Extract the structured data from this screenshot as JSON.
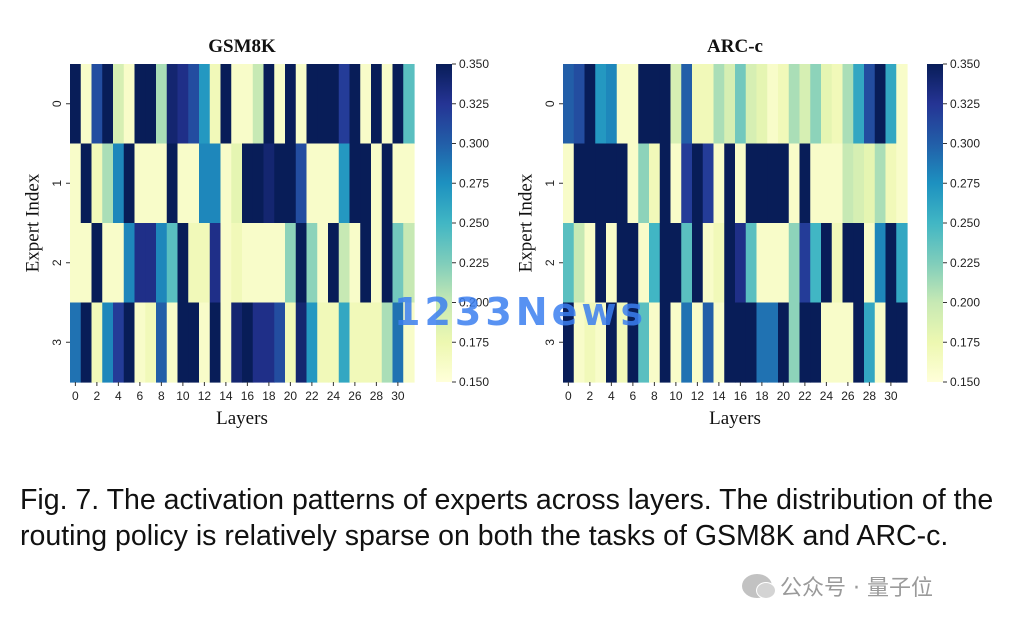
{
  "chart_data": [
    {
      "type": "heatmap",
      "title": "GSM8K",
      "xlabel": "Layers",
      "ylabel": "Expert Index",
      "x_ticks": [
        "0",
        "2",
        "4",
        "6",
        "8",
        "10",
        "12",
        "14",
        "16",
        "18",
        "20",
        "22",
        "24",
        "26",
        "28",
        "30"
      ],
      "y_ticks": [
        "0",
        "1",
        "2",
        "3"
      ],
      "colorbar": {
        "min": 0.15,
        "max": 0.35,
        "ticks": [
          "0.350",
          "0.325",
          "0.300",
          "0.275",
          "0.250",
          "0.225",
          "0.200",
          "0.175",
          "0.150"
        ]
      },
      "values": [
        [
          0.35,
          0.16,
          0.31,
          0.35,
          0.19,
          0.16,
          0.35,
          0.35,
          0.21,
          0.34,
          0.33,
          0.31,
          0.27,
          0.17,
          0.35,
          0.16,
          0.16,
          0.2,
          0.35,
          0.16,
          0.35,
          0.16,
          0.35,
          0.35,
          0.35,
          0.32,
          0.35,
          0.16,
          0.35,
          0.16,
          0.35,
          0.24
        ],
        [
          0.16,
          0.35,
          0.17,
          0.21,
          0.28,
          0.35,
          0.16,
          0.16,
          0.16,
          0.35,
          0.16,
          0.16,
          0.28,
          0.28,
          0.16,
          0.18,
          0.35,
          0.35,
          0.34,
          0.35,
          0.35,
          0.31,
          0.16,
          0.16,
          0.16,
          0.27,
          0.35,
          0.35,
          0.16,
          0.35,
          0.16,
          0.16
        ],
        [
          0.16,
          0.16,
          0.35,
          0.16,
          0.16,
          0.28,
          0.33,
          0.33,
          0.28,
          0.24,
          0.35,
          0.17,
          0.17,
          0.33,
          0.16,
          0.17,
          0.16,
          0.16,
          0.16,
          0.16,
          0.22,
          0.35,
          0.22,
          0.16,
          0.35,
          0.2,
          0.16,
          0.35,
          0.16,
          0.35,
          0.23,
          0.2
        ],
        [
          0.29,
          0.35,
          0.17,
          0.28,
          0.32,
          0.35,
          0.16,
          0.17,
          0.3,
          0.16,
          0.35,
          0.35,
          0.16,
          0.35,
          0.16,
          0.34,
          0.35,
          0.33,
          0.33,
          0.31,
          0.17,
          0.34,
          0.27,
          0.17,
          0.17,
          0.26,
          0.17,
          0.17,
          0.17,
          0.21,
          0.29,
          0.16
        ]
      ]
    },
    {
      "type": "heatmap",
      "title": "ARC-c",
      "xlabel": "Layers",
      "ylabel": "Expert Index",
      "x_ticks": [
        "0",
        "2",
        "4",
        "6",
        "8",
        "10",
        "12",
        "14",
        "16",
        "18",
        "20",
        "22",
        "24",
        "26",
        "28",
        "30"
      ],
      "y_ticks": [
        "0",
        "1",
        "2",
        "3"
      ],
      "colorbar": {
        "min": 0.15,
        "max": 0.35,
        "ticks": [
          "0.350",
          "0.325",
          "0.300",
          "0.275",
          "0.250",
          "0.225",
          "0.200",
          "0.175",
          "0.150"
        ]
      },
      "values": [
        [
          0.3,
          0.31,
          0.35,
          0.27,
          0.28,
          0.16,
          0.16,
          0.35,
          0.35,
          0.35,
          0.19,
          0.3,
          0.17,
          0.17,
          0.21,
          0.19,
          0.23,
          0.19,
          0.18,
          0.16,
          0.17,
          0.21,
          0.19,
          0.22,
          0.18,
          0.17,
          0.21,
          0.26,
          0.31,
          0.35,
          0.26,
          0.16
        ],
        [
          0.16,
          0.35,
          0.35,
          0.35,
          0.35,
          0.35,
          0.16,
          0.22,
          0.17,
          0.35,
          0.16,
          0.32,
          0.35,
          0.32,
          0.16,
          0.35,
          0.16,
          0.35,
          0.35,
          0.35,
          0.35,
          0.16,
          0.35,
          0.16,
          0.16,
          0.16,
          0.2,
          0.19,
          0.18,
          0.21,
          0.17,
          0.16
        ],
        [
          0.24,
          0.2,
          0.16,
          0.35,
          0.16,
          0.35,
          0.35,
          0.16,
          0.25,
          0.35,
          0.35,
          0.24,
          0.35,
          0.16,
          0.17,
          0.35,
          0.33,
          0.24,
          0.16,
          0.16,
          0.16,
          0.22,
          0.32,
          0.25,
          0.35,
          0.17,
          0.35,
          0.35,
          0.16,
          0.28,
          0.35,
          0.26
        ],
        [
          0.35,
          0.16,
          0.17,
          0.16,
          0.35,
          0.17,
          0.35,
          0.24,
          0.16,
          0.35,
          0.16,
          0.29,
          0.16,
          0.3,
          0.16,
          0.35,
          0.35,
          0.35,
          0.29,
          0.29,
          0.35,
          0.22,
          0.35,
          0.35,
          0.16,
          0.16,
          0.16,
          0.35,
          0.26,
          0.16,
          0.35,
          0.35
        ]
      ]
    }
  ],
  "caption": "Fig. 7. The activation patterns of experts across layers. The distribution of the routing policy is relatively sparse on both the tasks of GSM8K and ARC-c.",
  "watermark": "1233News",
  "source_mark": "公众号 · 量子位"
}
